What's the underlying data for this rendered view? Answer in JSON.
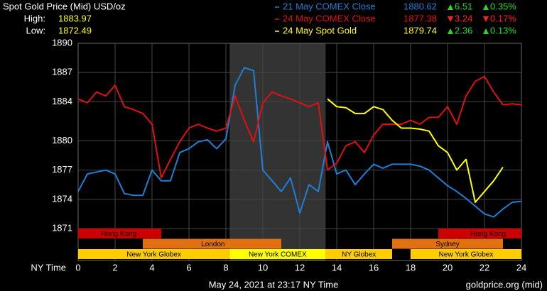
{
  "chart_data": {
    "type": "line",
    "title": "Spot Gold Price (Mid) USD/oz",
    "high_label": "High:",
    "high": "1883.97",
    "low_label": "Low:",
    "low": "1872.49",
    "xlabel": "NY Time",
    "footer": "May 24, 2021 at 23:17 NY Time",
    "source": "goldprice.org (mid)",
    "grid": true,
    "xlim": [
      0,
      24
    ],
    "xticks": [
      0,
      2,
      4,
      6,
      8,
      10,
      12,
      14,
      16,
      18,
      20,
      22,
      24
    ],
    "ylim": [
      1867.7,
      1890
    ],
    "yticks": [
      1871,
      1874,
      1877,
      1880,
      1884,
      1887,
      1890
    ],
    "x": [
      0,
      0.5,
      1,
      1.5,
      2,
      2.5,
      3,
      3.5,
      4,
      4.5,
      5,
      5.5,
      6,
      6.5,
      7,
      7.5,
      8,
      8.5,
      9,
      9.5,
      10,
      10.5,
      11,
      11.5,
      12,
      12.5,
      13,
      13.5,
      14,
      14.5,
      15,
      15.5,
      16,
      16.5,
      17,
      17.5,
      18,
      18.5,
      19,
      19.5,
      20,
      20.5,
      21,
      21.5,
      22,
      22.5,
      23,
      23.5,
      24
    ],
    "series": [
      {
        "name": "21 May COMEX Close",
        "color": "#1e7fd6",
        "price": "1880.62",
        "change": "6.51",
        "change_pct": "0.35%",
        "direction": "up",
        "values": [
          1874.8,
          1876.6,
          1876.8,
          1877.0,
          1876.6,
          1874.6,
          1874.4,
          1874.4,
          1877.0,
          1875.9,
          1875.9,
          1878.8,
          1879.2,
          1879.9,
          1880.1,
          1879.2,
          1880.2,
          1885.7,
          1887.5,
          1887.2,
          1877.0,
          1875.9,
          1874.8,
          1876.2,
          1872.6,
          1875.5,
          1874.8,
          1879.9,
          1876.6,
          1877.0,
          1875.5,
          1876.6,
          1877.6,
          1877.2,
          1877.6,
          1877.6,
          1877.6,
          1877.4,
          1877.0,
          1876.2,
          1875.4,
          1874.8,
          1874.1,
          1873.3,
          1872.5,
          1872.2,
          1873.0,
          1873.7,
          1873.8
        ]
      },
      {
        "name": "24 May COMEX Close",
        "color": "#e01010",
        "price": "1877.38",
        "change": "3.24",
        "change_pct": "0.17%",
        "direction": "down",
        "values": [
          1884.3,
          1883.9,
          1885.0,
          1884.6,
          1885.7,
          1883.5,
          1883.2,
          1882.8,
          1881.7,
          1876.2,
          1878.1,
          1879.9,
          1881.3,
          1881.7,
          1881.3,
          1881.0,
          1881.3,
          1884.6,
          1882.1,
          1879.9,
          1883.9,
          1885.0,
          1884.6,
          1884.3,
          1883.9,
          1883.5,
          1883.9,
          1877.0,
          1877.7,
          1879.5,
          1879.9,
          1878.8,
          1880.6,
          1881.7,
          1881.7,
          1881.7,
          1882.1,
          1881.7,
          1882.4,
          1882.4,
          1883.5,
          1881.7,
          1884.6,
          1886.1,
          1886.6,
          1885.0,
          1883.7,
          1883.8,
          1883.7
        ]
      },
      {
        "name": "24 May Spot Gold",
        "color": "#ffff00",
        "price": "1879.74",
        "change": "2.36",
        "change_pct": "0.13%",
        "direction": "up",
        "values": [
          null,
          null,
          null,
          null,
          null,
          null,
          null,
          null,
          null,
          null,
          null,
          null,
          null,
          null,
          null,
          null,
          null,
          null,
          null,
          null,
          null,
          null,
          null,
          null,
          null,
          null,
          null,
          1884.3,
          1883.5,
          1883.4,
          1882.8,
          1882.8,
          1883.5,
          1883.2,
          1882.1,
          1881.3,
          1881.3,
          1881.2,
          1881.0,
          1879.5,
          1878.8,
          1877.0,
          1878.1,
          1873.7,
          1874.8,
          1875.9,
          1877.3,
          null,
          null
        ]
      }
    ],
    "comex_hours": [
      8.2,
      13.4
    ],
    "sessions": [
      {
        "label": "Hong Kong",
        "start": 0,
        "end": 4.5,
        "row": 0,
        "color": "#cc0000",
        "text_at": 2.2
      },
      {
        "label": "Hong Kong",
        "start": 19.5,
        "end": 24,
        "row": 0,
        "color": "#cc0000",
        "text_at": 22.2
      },
      {
        "label": "London",
        "start": 3.5,
        "end": 11,
        "row": 1,
        "color": "#e07010",
        "text_at": 7.3
      },
      {
        "label": "Sydney",
        "start": 17,
        "end": 23,
        "row": 1,
        "color": "#e07010",
        "text_at": 20
      },
      {
        "label": "New York Globex",
        "start": 0,
        "end": 8.2,
        "row": 2,
        "color": "#ffcc00",
        "text_at": 4.1
      },
      {
        "label": "New York COMEX",
        "start": 8.2,
        "end": 13.4,
        "row": 2,
        "color": "#ffff00",
        "text_at": 10.8
      },
      {
        "label": "NY Globex",
        "start": 13.4,
        "end": 17,
        "row": 2,
        "color": "#ffcc00",
        "text_at": 15.2
      },
      {
        "label": "New York Globex",
        "start": 18,
        "end": 24,
        "row": 2,
        "color": "#ffcc00",
        "text_at": 21
      }
    ]
  }
}
